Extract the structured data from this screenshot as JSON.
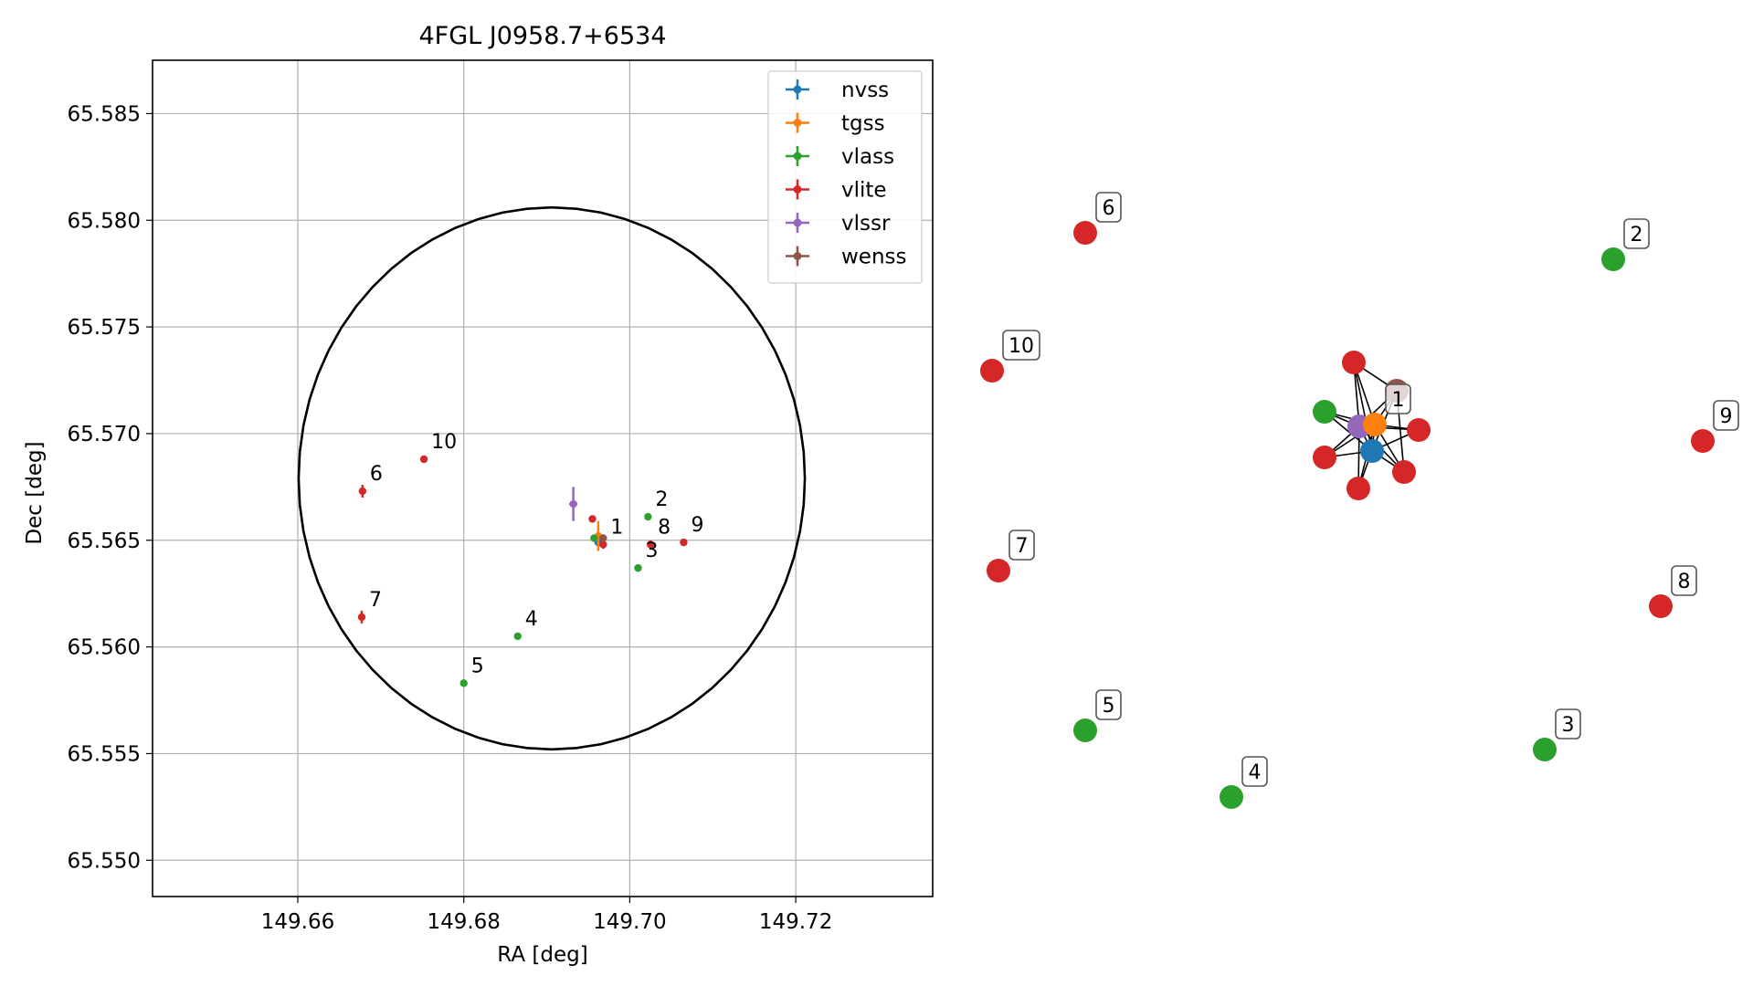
{
  "chart_data": [
    {
      "type": "scatter",
      "title": "4FGL J0958.7+6534",
      "xlabel": "RA [deg]",
      "ylabel": "Dec [deg]",
      "xlim": [
        149.6425,
        149.7365
      ],
      "ylim": [
        65.5483,
        65.5875
      ],
      "xticks": [
        149.66,
        149.68,
        149.7,
        149.72
      ],
      "xtick_labels": [
        "149.66",
        "149.68",
        "149.70",
        "149.72"
      ],
      "yticks": [
        65.55,
        65.555,
        65.56,
        65.565,
        65.57,
        65.575,
        65.58,
        65.585
      ],
      "ytick_labels": [
        "65.550",
        "65.555",
        "65.560",
        "65.565",
        "65.570",
        "65.575",
        "65.580",
        "65.585"
      ],
      "grid": true,
      "legend_position": "top-right",
      "circle": {
        "ra": 149.6906,
        "dec": 65.5679,
        "radius_ra": 0.0305,
        "radius_dec": 0.0127
      },
      "series": [
        {
          "name": "nvss",
          "color": "#1f77b4",
          "points": [
            {
              "x": 149.6962,
              "y": 65.5649,
              "xerr": 0.0004,
              "yerr": 0.0002
            }
          ]
        },
        {
          "name": "tgss",
          "color": "#ff7f0e",
          "points": [
            {
              "x": 149.6962,
              "y": 65.5652,
              "xerr": 0.0002,
              "yerr": 0.0007
            }
          ]
        },
        {
          "name": "vlass",
          "color": "#2ca02c",
          "points": [
            {
              "x": 149.7022,
              "y": 65.5661,
              "label": "2"
            },
            {
              "x": 149.701,
              "y": 65.5637,
              "label": "3"
            },
            {
              "x": 149.6865,
              "y": 65.5605,
              "label": "4"
            },
            {
              "x": 149.68,
              "y": 65.5583,
              "label": "5"
            },
            {
              "x": 149.6957,
              "y": 65.5651
            }
          ]
        },
        {
          "name": "vlite",
          "color": "#d62728",
          "points": [
            {
              "x": 149.6968,
              "y": 65.5648,
              "label": "1",
              "yerr": 0.0002
            },
            {
              "x": 149.6955,
              "y": 65.566
            },
            {
              "x": 149.6678,
              "y": 65.5673,
              "label": "6",
              "yerr": 0.0003
            },
            {
              "x": 149.6677,
              "y": 65.5614,
              "label": "7",
              "yerr": 0.0003
            },
            {
              "x": 149.7025,
              "y": 65.5648,
              "label": "8",
              "yerr": 0.0002
            },
            {
              "x": 149.7065,
              "y": 65.5649,
              "label": "9"
            },
            {
              "x": 149.6752,
              "y": 65.5688,
              "label": "10"
            }
          ]
        },
        {
          "name": "vlssr",
          "color": "#9467bd",
          "points": [
            {
              "x": 149.6932,
              "y": 65.5667,
              "xerr": 0.0005,
              "yerr": 0.0008
            }
          ]
        },
        {
          "name": "wenss",
          "color": "#8c564b",
          "points": [
            {
              "x": 149.6968,
              "y": 65.5651
            }
          ]
        }
      ]
    },
    {
      "type": "network",
      "nodes": [
        {
          "id": "6",
          "color": "#d62728",
          "label": "6"
        },
        {
          "id": "2",
          "color": "#2ca02c",
          "label": "2"
        },
        {
          "id": "10",
          "color": "#d62728",
          "label": "10"
        },
        {
          "id": "9",
          "color": "#d62728",
          "label": "9"
        },
        {
          "id": "7",
          "color": "#d62728",
          "label": "7"
        },
        {
          "id": "8",
          "color": "#d62728",
          "label": "8"
        },
        {
          "id": "5",
          "color": "#2ca02c",
          "label": "5"
        },
        {
          "id": "3",
          "color": "#2ca02c",
          "label": "3"
        },
        {
          "id": "4",
          "color": "#2ca02c",
          "label": "4"
        },
        {
          "id": "c1",
          "color": "#1f77b4"
        },
        {
          "id": "c2",
          "color": "#ff7f0e",
          "label": "1"
        },
        {
          "id": "c3",
          "color": "#2ca02c"
        },
        {
          "id": "c4",
          "color": "#d62728"
        },
        {
          "id": "c5",
          "color": "#d62728"
        },
        {
          "id": "c6",
          "color": "#d62728"
        },
        {
          "id": "c7",
          "color": "#d62728"
        },
        {
          "id": "c8",
          "color": "#d62728"
        },
        {
          "id": "c9",
          "color": "#9467bd"
        },
        {
          "id": "c10",
          "color": "#8c564b"
        }
      ],
      "edges": [
        [
          "c1",
          "c2"
        ],
        [
          "c1",
          "c3"
        ],
        [
          "c1",
          "c4"
        ],
        [
          "c1",
          "c5"
        ],
        [
          "c1",
          "c6"
        ],
        [
          "c1",
          "c7"
        ],
        [
          "c1",
          "c8"
        ],
        [
          "c1",
          "c9"
        ],
        [
          "c1",
          "c10"
        ],
        [
          "c2",
          "c3"
        ],
        [
          "c2",
          "c4"
        ],
        [
          "c2",
          "c5"
        ],
        [
          "c2",
          "c6"
        ],
        [
          "c2",
          "c7"
        ],
        [
          "c2",
          "c8"
        ],
        [
          "c2",
          "c9"
        ],
        [
          "c2",
          "c10"
        ],
        [
          "c9",
          "c3"
        ],
        [
          "c9",
          "c4"
        ],
        [
          "c9",
          "c5"
        ],
        [
          "c9",
          "c6"
        ],
        [
          "c9",
          "c7"
        ],
        [
          "c9",
          "c8"
        ],
        [
          "c9",
          "c10"
        ],
        [
          "c10",
          "c4"
        ],
        [
          "c10",
          "c8"
        ]
      ]
    }
  ]
}
